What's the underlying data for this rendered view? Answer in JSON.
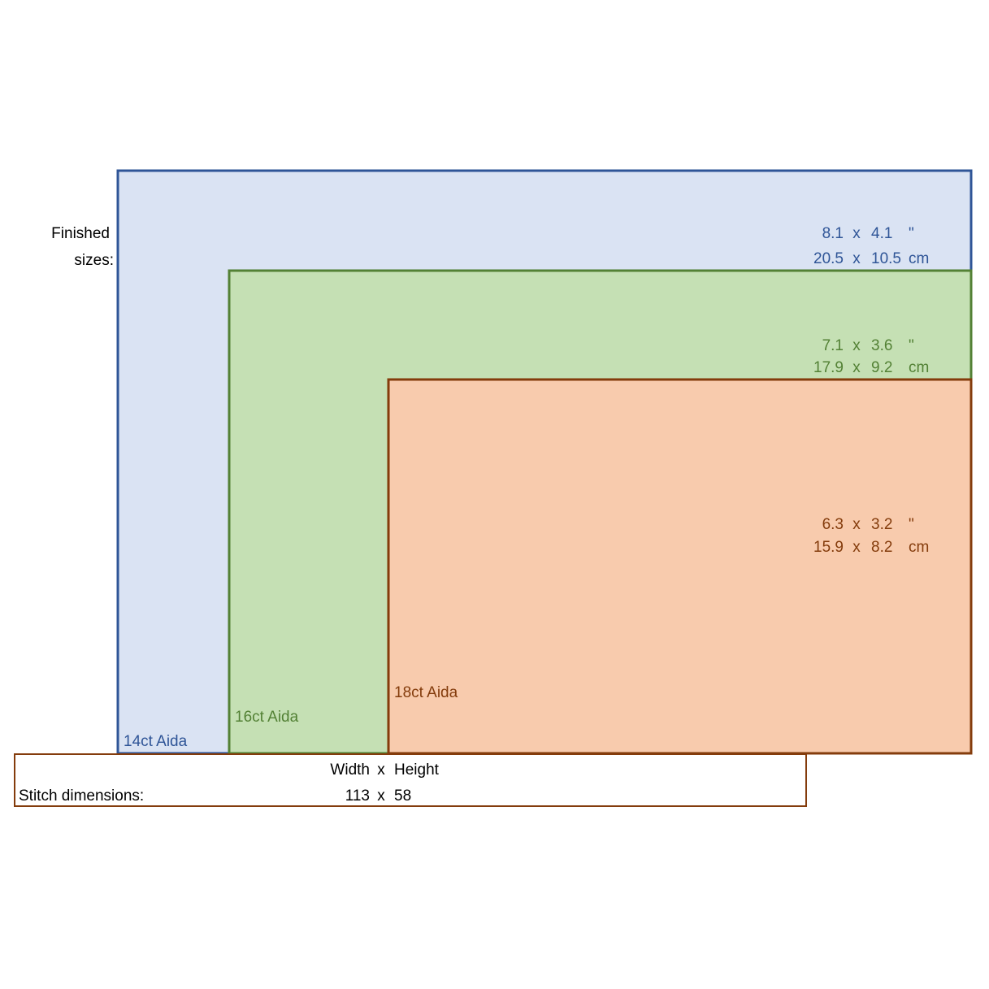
{
  "finished_label": {
    "line1": "Finished",
    "line2": "sizes:"
  },
  "separator": "x",
  "fabrics": [
    {
      "name": "14ct Aida",
      "inches": {
        "width": 8.1,
        "height": 4.1,
        "unit": "\""
      },
      "cm": {
        "width": 20.5,
        "height": 10.5,
        "unit": "cm"
      }
    },
    {
      "name": "16ct Aida",
      "inches": {
        "width": 7.1,
        "height": 3.6,
        "unit": "\""
      },
      "cm": {
        "width": 17.9,
        "height": 9.2,
        "unit": "cm"
      }
    },
    {
      "name": "18ct Aida",
      "inches": {
        "width": 6.3,
        "height": 3.2,
        "unit": "\""
      },
      "cm": {
        "width": 15.9,
        "height": 8.2,
        "unit": "cm"
      }
    }
  ],
  "stitch": {
    "label": "Stitch dimensions:",
    "width_header": "Width",
    "height_header": "Height",
    "width": 113,
    "height": 58
  }
}
